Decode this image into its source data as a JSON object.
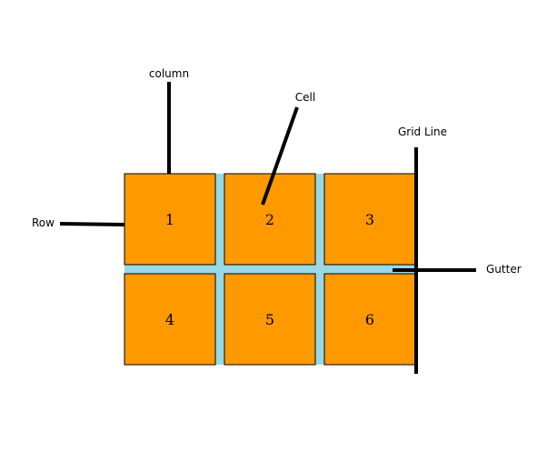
{
  "diagram": {
    "colors": {
      "cell_fill": "#ff9900",
      "gutter_fill": "#99d9e5",
      "line": "#000000",
      "background": "#ffffff"
    },
    "cells": [
      {
        "label": "1"
      },
      {
        "label": "2"
      },
      {
        "label": "3"
      },
      {
        "label": "4"
      },
      {
        "label": "5"
      },
      {
        "label": "6"
      }
    ],
    "callouts": {
      "column": "column",
      "cell": "Cell",
      "grid_line": "Grid Line",
      "row": "Row",
      "gutter": "Gutter"
    }
  }
}
